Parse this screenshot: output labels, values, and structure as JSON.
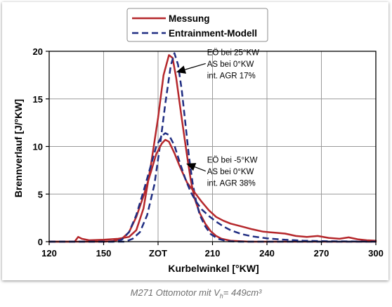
{
  "chart_data": {
    "type": "line",
    "xlabel": "Kurbelwinkel [°KW]",
    "ylabel": "Brennverlauf [J/°KW]",
    "xlim": [
      120,
      300
    ],
    "ylim": [
      0,
      20
    ],
    "x_ticks": [
      120,
      150,
      180,
      210,
      240,
      270,
      300
    ],
    "x_tick_labels": [
      "120",
      "150",
      "ZOT",
      "210",
      "240",
      "270",
      "300"
    ],
    "y_ticks": [
      0,
      5,
      10,
      15,
      20
    ],
    "y_tick_labels": [
      "0",
      "5",
      "10",
      "15",
      "20"
    ],
    "grid": true,
    "legend_position": "top-center",
    "series": [
      {
        "name": "Messung",
        "color": "#b5272b",
        "style": "solid",
        "group": "EÖ bei 25°KW",
        "points": [
          [
            120,
            0
          ],
          [
            134,
            0
          ],
          [
            136,
            0.5
          ],
          [
            138,
            0.3
          ],
          [
            142,
            0.15
          ],
          [
            150,
            0.2
          ],
          [
            158,
            0.3
          ],
          [
            164,
            0.5
          ],
          [
            168,
            1.2
          ],
          [
            172,
            3.5
          ],
          [
            176,
            8
          ],
          [
            180,
            13
          ],
          [
            183,
            17.5
          ],
          [
            186,
            19.6
          ],
          [
            188,
            19.3
          ],
          [
            190,
            17.2
          ],
          [
            193,
            13
          ],
          [
            196,
            9
          ],
          [
            198,
            6.5
          ],
          [
            200,
            4.6
          ],
          [
            203,
            3
          ],
          [
            206,
            1.9
          ],
          [
            209,
            1.1
          ],
          [
            212,
            0.6
          ],
          [
            215,
            0.3
          ],
          [
            220,
            0.1
          ],
          [
            230,
            0
          ],
          [
            300,
            0
          ]
        ]
      },
      {
        "name": "Entrainment-Modell",
        "color": "#1f2d82",
        "style": "dashed",
        "group": "EÖ bei 25°KW",
        "points": [
          [
            120,
            0
          ],
          [
            162,
            0
          ],
          [
            166,
            0.3
          ],
          [
            170,
            1
          ],
          [
            174,
            2.8
          ],
          [
            178,
            6
          ],
          [
            181,
            10
          ],
          [
            184,
            14.5
          ],
          [
            187,
            18.5
          ],
          [
            189,
            19.8
          ],
          [
            191,
            18.6
          ],
          [
            193,
            16
          ],
          [
            195,
            12.5
          ],
          [
            197,
            9
          ],
          [
            199,
            6.2
          ],
          [
            201,
            4.2
          ],
          [
            203,
            2.8
          ],
          [
            206,
            1.6
          ],
          [
            209,
            0.8
          ],
          [
            213,
            0.3
          ],
          [
            218,
            0.05
          ],
          [
            225,
            0
          ],
          [
            300,
            0
          ]
        ]
      },
      {
        "name": "Messung",
        "color": "#b5272b",
        "style": "solid",
        "group": "EÖ bei -5°KW",
        "points": [
          [
            120,
            0
          ],
          [
            150,
            0
          ],
          [
            155,
            0.05
          ],
          [
            160,
            0.3
          ],
          [
            164,
            1
          ],
          [
            168,
            2.6
          ],
          [
            172,
            4.8
          ],
          [
            176,
            7.3
          ],
          [
            179,
            9.2
          ],
          [
            182,
            10.3
          ],
          [
            184,
            10.7
          ],
          [
            186,
            10.5
          ],
          [
            189,
            9.3
          ],
          [
            192,
            7.9
          ],
          [
            196,
            6.2
          ],
          [
            200,
            5.2
          ],
          [
            204,
            4.2
          ],
          [
            208,
            3.3
          ],
          [
            212,
            2.6
          ],
          [
            216,
            2.2
          ],
          [
            220,
            1.9
          ],
          [
            226,
            1.6
          ],
          [
            232,
            1.3
          ],
          [
            238,
            1.05
          ],
          [
            244,
            0.95
          ],
          [
            250,
            0.85
          ],
          [
            256,
            0.6
          ],
          [
            262,
            0.5
          ],
          [
            268,
            0.6
          ],
          [
            274,
            0.4
          ],
          [
            280,
            0.3
          ],
          [
            285,
            0.45
          ],
          [
            290,
            0.25
          ],
          [
            295,
            0.15
          ],
          [
            300,
            0.1
          ]
        ]
      },
      {
        "name": "Entrainment-Modell",
        "color": "#1f2d82",
        "style": "dashed",
        "group": "EÖ bei -5°KW",
        "points": [
          [
            120,
            0
          ],
          [
            155,
            0
          ],
          [
            160,
            0.2
          ],
          [
            164,
            1
          ],
          [
            168,
            2.8
          ],
          [
            172,
            5.3
          ],
          [
            176,
            8
          ],
          [
            179,
            10
          ],
          [
            182,
            11.1
          ],
          [
            184,
            11.4
          ],
          [
            186,
            11.2
          ],
          [
            189,
            10.1
          ],
          [
            192,
            8.3
          ],
          [
            195,
            6.6
          ],
          [
            198,
            5.2
          ],
          [
            201,
            4.2
          ],
          [
            204,
            3.4
          ],
          [
            208,
            2.7
          ],
          [
            212,
            2.1
          ],
          [
            216,
            1.6
          ],
          [
            220,
            1.2
          ],
          [
            226,
            0.8
          ],
          [
            232,
            0.55
          ],
          [
            240,
            0.35
          ],
          [
            250,
            0.2
          ],
          [
            260,
            0.1
          ],
          [
            270,
            0.05
          ],
          [
            300,
            0
          ]
        ]
      }
    ],
    "annotations": [
      {
        "lines": [
          "EÖ bei 25°KW",
          "AS bei 0°KW",
          "int. AGR 17%"
        ],
        "text_at": [
          207,
          19.6
        ],
        "arrow_tip": [
          190,
          17.8
        ]
      },
      {
        "lines": [
          "EÖ bei -5°KW",
          "AS bei 0°KW",
          "int. AGR 38%"
        ],
        "text_at": [
          207,
          8.3
        ],
        "arrow_tip": [
          195.5,
          8.2
        ]
      }
    ]
  },
  "caption": {
    "prefix": "M271 Ottomotor mit V",
    "subscript": "h",
    "suffix": "= 449cm³"
  }
}
